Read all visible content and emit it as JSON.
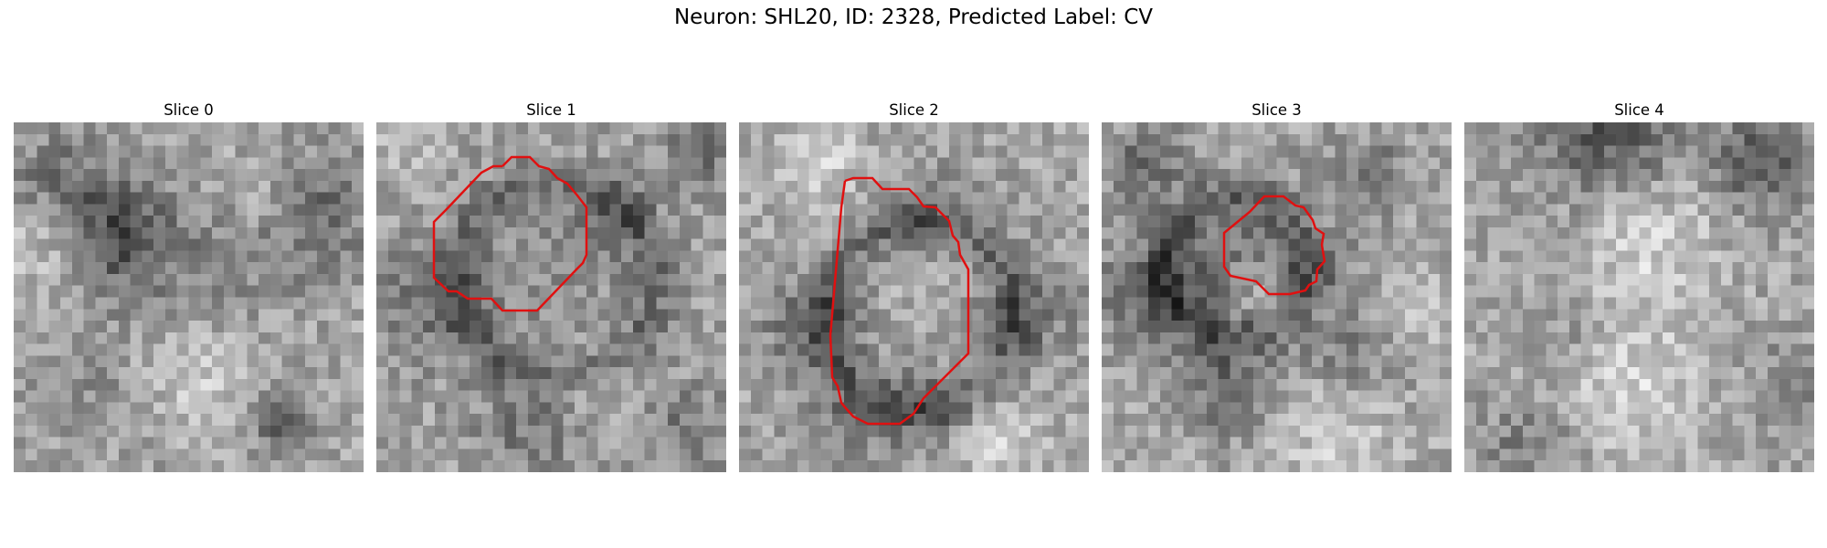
{
  "figure": {
    "title": "Neuron: SHL20, ID: 2328, Predicted Label: CV",
    "outline_color": "#e01010"
  },
  "panels": [
    {
      "title": "Slice 0",
      "has_outline": false,
      "seed": 11
    },
    {
      "title": "Slice 1",
      "has_outline": true,
      "seed": 23
    },
    {
      "title": "Slice 2",
      "has_outline": true,
      "seed": 37
    },
    {
      "title": "Slice 3",
      "has_outline": true,
      "seed": 41
    },
    {
      "title": "Slice 4",
      "has_outline": false,
      "seed": 53
    }
  ]
}
